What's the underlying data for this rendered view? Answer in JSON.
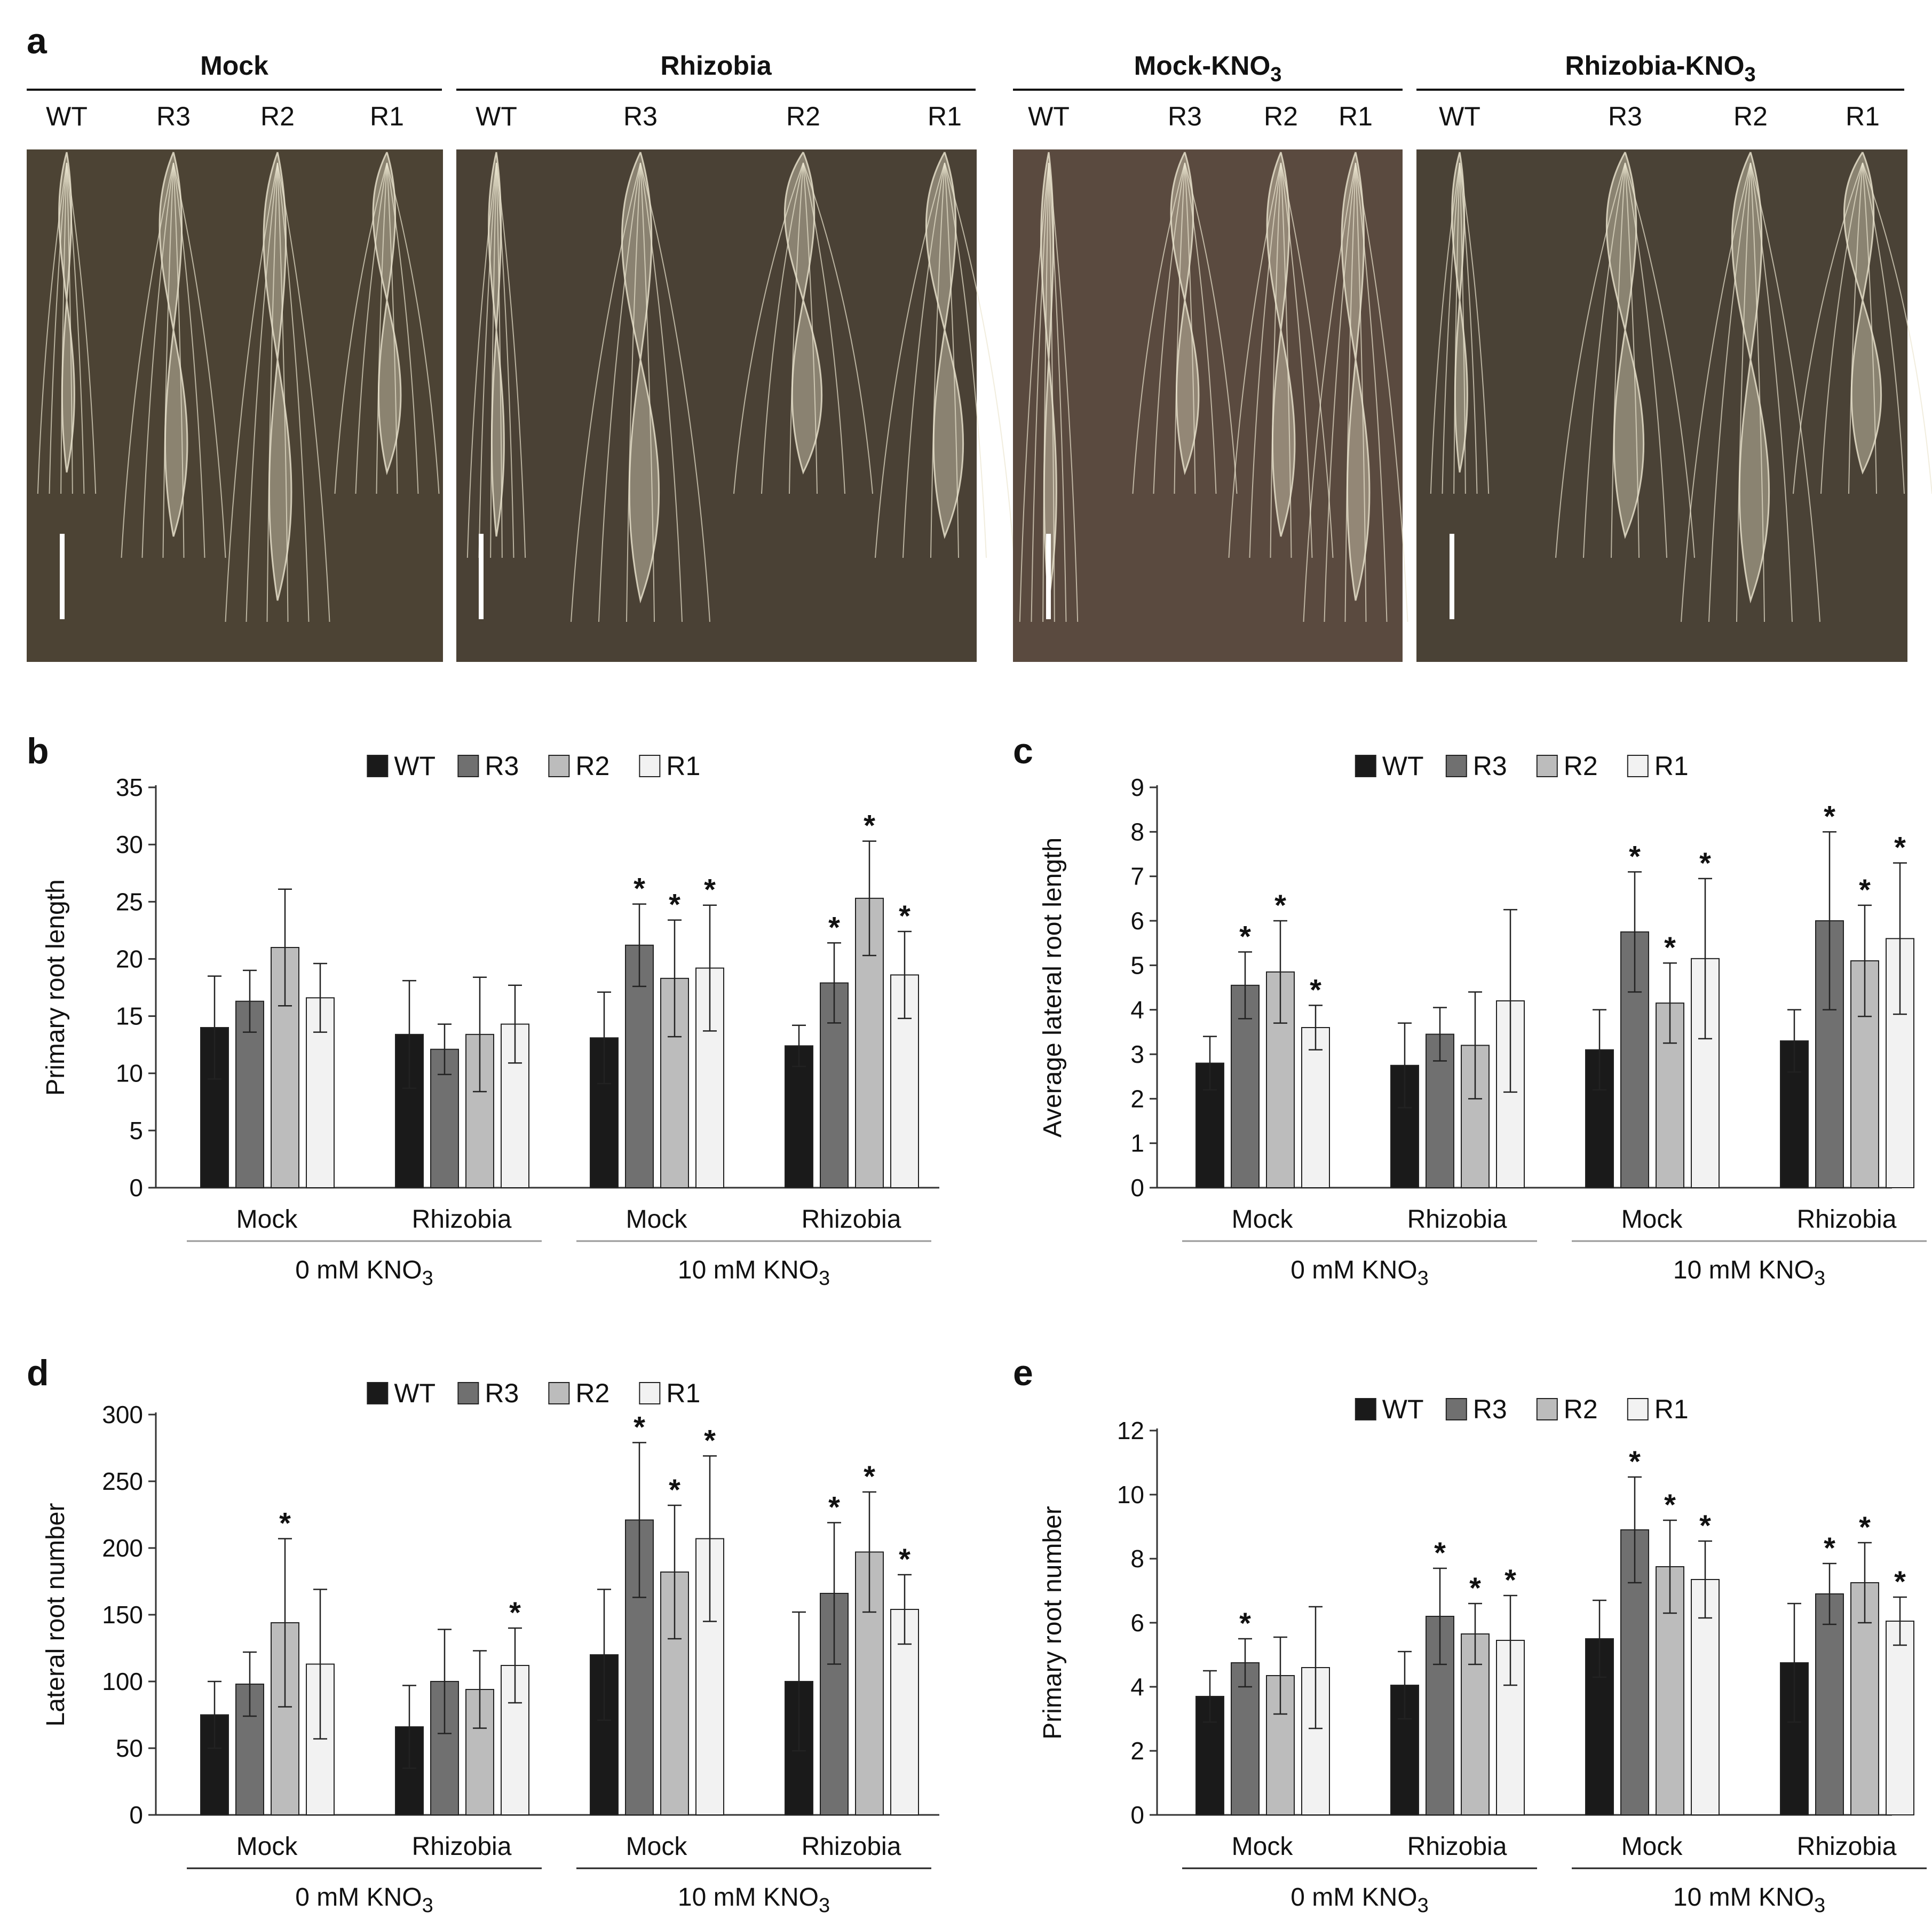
{
  "panel_a": {
    "label": "a",
    "groups": [
      {
        "title": "Mock",
        "lines": [
          "WT",
          "R3",
          "R2",
          "R1"
        ]
      },
      {
        "title": "Rhizobia",
        "lines": [
          "WT",
          "R3",
          "R2",
          "R1"
        ]
      },
      {
        "title_main": "Mock-KNO",
        "title_sub": "3",
        "lines": [
          "WT",
          "R3",
          "R2",
          "R1"
        ]
      },
      {
        "title_main": "Rhizobia-KNO",
        "title_sub": "3",
        "lines": [
          "WT",
          "R3",
          "R2",
          "R1"
        ]
      }
    ],
    "photo_colors": [
      "#4c4334",
      "#4a4135",
      "#5a4a3f",
      "#4a4236"
    ]
  },
  "chart_data": [
    {
      "panel": "b",
      "type": "bar",
      "ylabel": "Primary root length",
      "ylim": [
        0,
        35
      ],
      "yticks": [
        0,
        5,
        10,
        15,
        20,
        25,
        30,
        35
      ],
      "categories": [
        "Mock",
        "Rhizobia",
        "Mock",
        "Rhizobia"
      ],
      "conditions": [
        {
          "main": "0 mM  KNO",
          "sub": "3"
        },
        {
          "main": "10 mM  KNO",
          "sub": "3"
        }
      ],
      "series": [
        {
          "name": "WT",
          "values": [
            14.0,
            13.4,
            13.1,
            12.4
          ],
          "errors": [
            4.5,
            4.7,
            4.0,
            1.8
          ],
          "sig": [
            false,
            false,
            false,
            false
          ]
        },
        {
          "name": "R3",
          "values": [
            16.3,
            12.1,
            21.2,
            17.9
          ],
          "errors": [
            2.7,
            2.2,
            3.6,
            3.5
          ],
          "sig": [
            false,
            false,
            true,
            true
          ]
        },
        {
          "name": "R2",
          "values": [
            21.0,
            13.4,
            18.3,
            25.3
          ],
          "errors": [
            5.1,
            5.0,
            5.1,
            5.0
          ],
          "sig": [
            false,
            false,
            true,
            true
          ]
        },
        {
          "name": "R1",
          "values": [
            16.6,
            14.3,
            19.2,
            18.6
          ],
          "errors": [
            3.0,
            3.4,
            5.5,
            3.8
          ],
          "sig": [
            false,
            false,
            true,
            true
          ]
        }
      ]
    },
    {
      "panel": "c",
      "type": "bar",
      "ylabel": "Average lateral root length",
      "ylim": [
        0,
        9
      ],
      "yticks": [
        0,
        1,
        2,
        3,
        4,
        5,
        6,
        7,
        8,
        9
      ],
      "categories": [
        "Mock",
        "Rhizobia",
        "Mock",
        "Rhizobia"
      ],
      "conditions": [
        {
          "main": "0 mM KNO",
          "sub": "3"
        },
        {
          "main": "10 mM KNO",
          "sub": "3"
        }
      ],
      "series": [
        {
          "name": "WT",
          "values": [
            2.8,
            2.75,
            3.1,
            3.3
          ],
          "errors": [
            0.6,
            0.95,
            0.9,
            0.7
          ],
          "sig": [
            false,
            false,
            false,
            false
          ]
        },
        {
          "name": "R3",
          "values": [
            4.55,
            3.45,
            5.75,
            6.0
          ],
          "errors": [
            0.75,
            0.6,
            1.35,
            2.0
          ],
          "sig": [
            true,
            false,
            true,
            true
          ]
        },
        {
          "name": "R2",
          "values": [
            4.85,
            3.2,
            4.15,
            5.1
          ],
          "errors": [
            1.15,
            1.2,
            0.9,
            1.25
          ],
          "sig": [
            true,
            false,
            true,
            true
          ]
        },
        {
          "name": "R1",
          "values": [
            3.6,
            4.2,
            5.15,
            5.6
          ],
          "errors": [
            0.5,
            2.05,
            1.8,
            1.7
          ],
          "sig": [
            true,
            false,
            true,
            true
          ]
        }
      ]
    },
    {
      "panel": "d",
      "type": "bar",
      "ylabel": "Lateral root number",
      "ylim": [
        0,
        300
      ],
      "yticks": [
        0,
        50,
        100,
        150,
        200,
        250,
        300
      ],
      "categories": [
        "Mock",
        "Rhizobia",
        "Mock",
        "Rhizobia"
      ],
      "conditions": [
        {
          "main": "0 mM  KNO",
          "sub": "3"
        },
        {
          "main": "10 mM  KNO",
          "sub": "3"
        }
      ],
      "series": [
        {
          "name": "WT",
          "values": [
            75,
            66,
            120,
            100
          ],
          "errors": [
            25,
            31,
            49,
            52
          ],
          "sig": [
            false,
            false,
            false,
            false
          ]
        },
        {
          "name": "R3",
          "values": [
            98,
            100,
            221,
            166
          ],
          "errors": [
            24,
            39,
            58,
            53
          ],
          "sig": [
            false,
            false,
            true,
            true
          ]
        },
        {
          "name": "R2",
          "values": [
            144,
            94,
            182,
            197
          ],
          "errors": [
            63,
            29,
            50,
            45
          ],
          "sig": [
            true,
            false,
            true,
            true
          ]
        },
        {
          "name": "R1",
          "values": [
            113,
            112,
            207,
            154
          ],
          "errors": [
            56,
            28,
            62,
            26
          ],
          "sig": [
            false,
            true,
            true,
            true
          ]
        }
      ]
    },
    {
      "panel": "e",
      "type": "bar",
      "ylabel": "Primary root number",
      "ylim": [
        0,
        12
      ],
      "yticks": [
        0,
        2,
        4,
        6,
        8,
        10,
        12
      ],
      "categories": [
        "Mock",
        "Rhizobia",
        "Mock",
        "Rhizobia"
      ],
      "conditions": [
        {
          "main": "0 mM KNO",
          "sub": "3"
        },
        {
          "main": "10 mM KNO",
          "sub": "3"
        }
      ],
      "series": [
        {
          "name": "WT",
          "values": [
            3.7,
            4.05,
            5.5,
            4.75
          ],
          "errors": [
            0.8,
            1.05,
            1.2,
            1.85
          ],
          "sig": [
            false,
            false,
            false,
            false
          ]
        },
        {
          "name": "R3",
          "values": [
            4.75,
            6.2,
            8.9,
            6.9
          ],
          "errors": [
            0.75,
            1.5,
            1.65,
            0.95
          ],
          "sig": [
            true,
            true,
            true,
            true
          ]
        },
        {
          "name": "R2",
          "values": [
            4.35,
            5.65,
            7.75,
            7.25
          ],
          "errors": [
            1.2,
            0.95,
            1.45,
            1.25
          ],
          "sig": [
            false,
            true,
            true,
            true
          ]
        },
        {
          "name": "R1",
          "values": [
            4.6,
            5.45,
            7.35,
            6.05
          ],
          "errors": [
            1.9,
            1.4,
            1.2,
            0.75
          ],
          "sig": [
            false,
            true,
            true,
            true
          ]
        }
      ]
    }
  ],
  "legend": [
    "WT",
    "R3",
    "R2",
    "R1"
  ],
  "series_colors": [
    "#1a1a1a",
    "#707070",
    "#bcbcbc",
    "#f2f2f2"
  ],
  "significance_mark": "*"
}
